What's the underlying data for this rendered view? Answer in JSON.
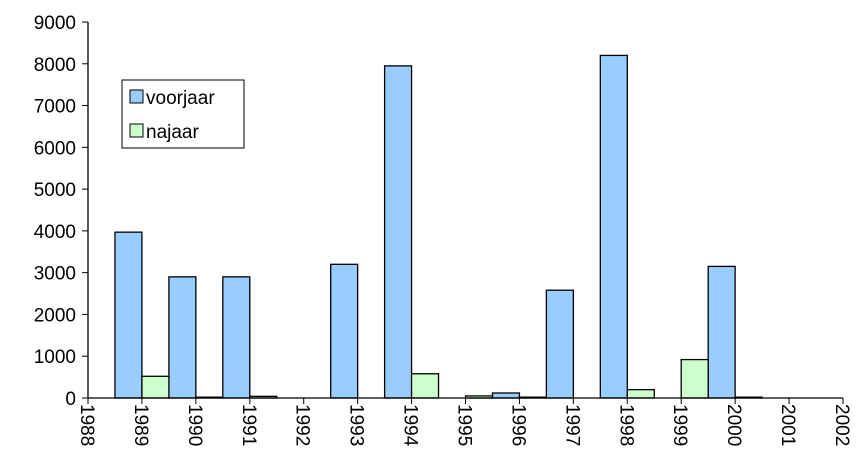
{
  "chart_data": {
    "type": "bar",
    "x": [
      1989,
      1990,
      1991,
      1992,
      1993,
      1994,
      1995,
      1996,
      1997,
      1998,
      1999,
      2000
    ],
    "series": [
      {
        "name": "voorjaar",
        "color": "#99ccff",
        "values": [
          3970,
          2900,
          2900,
          null,
          3200,
          7950,
          null,
          120,
          2580,
          8200,
          null,
          3150
        ]
      },
      {
        "name": "najaar",
        "color": "#ccffcc",
        "values": [
          520,
          20,
          40,
          null,
          null,
          580,
          50,
          20,
          null,
          200,
          920,
          20
        ]
      }
    ],
    "xlim": [
      1988,
      2002
    ],
    "xticks": [
      1988,
      1989,
      1990,
      1991,
      1992,
      1993,
      1994,
      1995,
      1996,
      1997,
      1998,
      1999,
      2000,
      2001,
      2002
    ],
    "ylim": [
      0,
      9000
    ],
    "yticks": [
      0,
      1000,
      2000,
      3000,
      4000,
      5000,
      6000,
      7000,
      8000,
      9000
    ],
    "grid": false,
    "legend": "upper left"
  }
}
